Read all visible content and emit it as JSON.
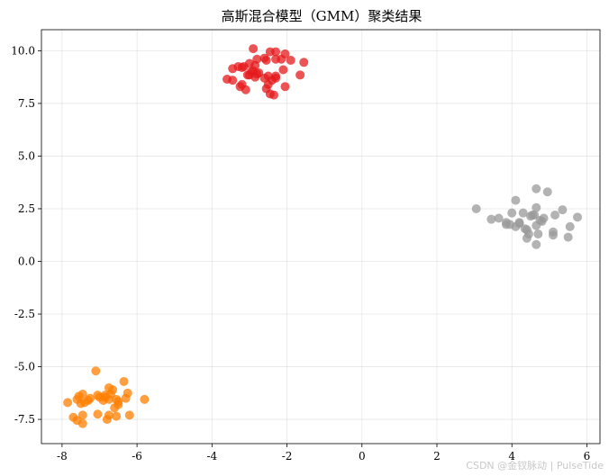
{
  "watermark": "CSDN @金钗脉动 | PulseTide",
  "chart_data": {
    "type": "scatter",
    "title": "高斯混合模型（GMM）聚类结果",
    "xlabel": "",
    "ylabel": "",
    "xlim": [
      -8.55,
      6.35
    ],
    "ylim": [
      -8.65,
      11.0
    ],
    "xticks": [
      -8,
      -6,
      -4,
      -2,
      0,
      2,
      4,
      6
    ],
    "yticks": [
      -7.5,
      -5.0,
      -2.5,
      0.0,
      2.5,
      5.0,
      7.5,
      10.0
    ],
    "xtick_labels": [
      "-8",
      "-6",
      "-4",
      "-2",
      "0",
      "2",
      "4",
      "6"
    ],
    "ytick_labels": [
      "-7.5",
      "-5.0",
      "-2.5",
      "0.0",
      "2.5",
      "5.0",
      "7.5",
      "10.0"
    ],
    "grid": true,
    "series": [
      {
        "color": "#e41a1c",
        "x": [
          -2.9,
          -2.45,
          -2.3,
          -2.05,
          -3.3,
          -3.15,
          -2.8,
          -2.6,
          -2.15,
          -1.9,
          -1.55,
          -3.0,
          -2.85,
          -2.55,
          -2.3,
          -3.45,
          -3.2,
          -2.95,
          -2.75,
          -2.5,
          -2.3,
          -2.1,
          -1.65,
          -3.6,
          -3.0,
          -2.85,
          -2.6,
          -2.4,
          -3.45,
          -3.25,
          -3.05,
          -2.8,
          -2.5,
          -2.3,
          -2.05,
          -2.55,
          -3.2,
          -3.1,
          -2.45,
          -2.35,
          -2.9
        ],
        "y": [
          10.1,
          9.95,
          9.95,
          9.85,
          9.25,
          9.25,
          9.6,
          9.65,
          9.6,
          9.55,
          9.45,
          9.4,
          9.3,
          9.55,
          9.6,
          9.15,
          9.2,
          9.0,
          8.95,
          8.8,
          8.8,
          9.1,
          8.85,
          8.65,
          8.85,
          8.75,
          8.7,
          8.6,
          8.6,
          8.3,
          8.85,
          8.9,
          8.4,
          8.7,
          8.3,
          8.2,
          8.4,
          8.15,
          7.95,
          7.9,
          9.05
        ]
      },
      {
        "color": "#999999",
        "x": [
          4.65,
          4.1,
          4.95,
          3.05,
          3.65,
          3.85,
          4.3,
          4.55,
          4.65,
          4.85,
          5.35,
          4.0,
          4.2,
          4.5,
          4.75,
          5.15,
          5.75,
          3.45,
          3.85,
          4.1,
          4.4,
          4.65,
          4.8,
          5.55,
          4.45,
          4.7,
          5.1,
          5.1,
          4.4,
          4.6,
          5.5,
          4.65,
          3.95,
          4.35,
          4.2
        ],
        "y": [
          3.45,
          2.9,
          3.3,
          2.5,
          2.05,
          1.75,
          2.3,
          2.2,
          2.55,
          2.05,
          2.45,
          2.3,
          1.8,
          2.15,
          1.95,
          2.2,
          2.1,
          2.0,
          1.85,
          1.65,
          1.5,
          1.7,
          1.9,
          1.65,
          1.3,
          1.3,
          1.4,
          1.25,
          1.1,
          2.2,
          1.15,
          0.8,
          1.75,
          1.55,
          1.85
        ]
      },
      {
        "color": "#ff7f00",
        "x": [
          -7.1,
          -6.35,
          -7.85,
          -7.55,
          -7.45,
          -7.25,
          -7.05,
          -6.85,
          -6.75,
          -6.65,
          -6.25,
          -6.85,
          -6.7,
          -6.55,
          -7.4,
          -7.6,
          -7.3,
          -7.0,
          -6.75,
          -6.5,
          -6.3,
          -5.8,
          -7.7,
          -7.45,
          -7.05,
          -6.75,
          -6.5,
          -6.9,
          -6.6,
          -6.2,
          -7.6,
          -7.45,
          -6.8,
          -7.5,
          -6.55
        ],
        "y": [
          -5.2,
          -5.7,
          -6.7,
          -6.4,
          -6.3,
          -6.5,
          -6.35,
          -6.45,
          -6.0,
          -6.1,
          -6.25,
          -6.35,
          -6.3,
          -6.55,
          -6.7,
          -6.55,
          -6.6,
          -6.45,
          -6.55,
          -6.65,
          -6.5,
          -6.55,
          -7.4,
          -7.3,
          -7.25,
          -7.3,
          -6.8,
          -6.6,
          -6.95,
          -7.3,
          -7.55,
          -7.7,
          -7.5,
          -6.75,
          -7.35
        ]
      }
    ]
  }
}
